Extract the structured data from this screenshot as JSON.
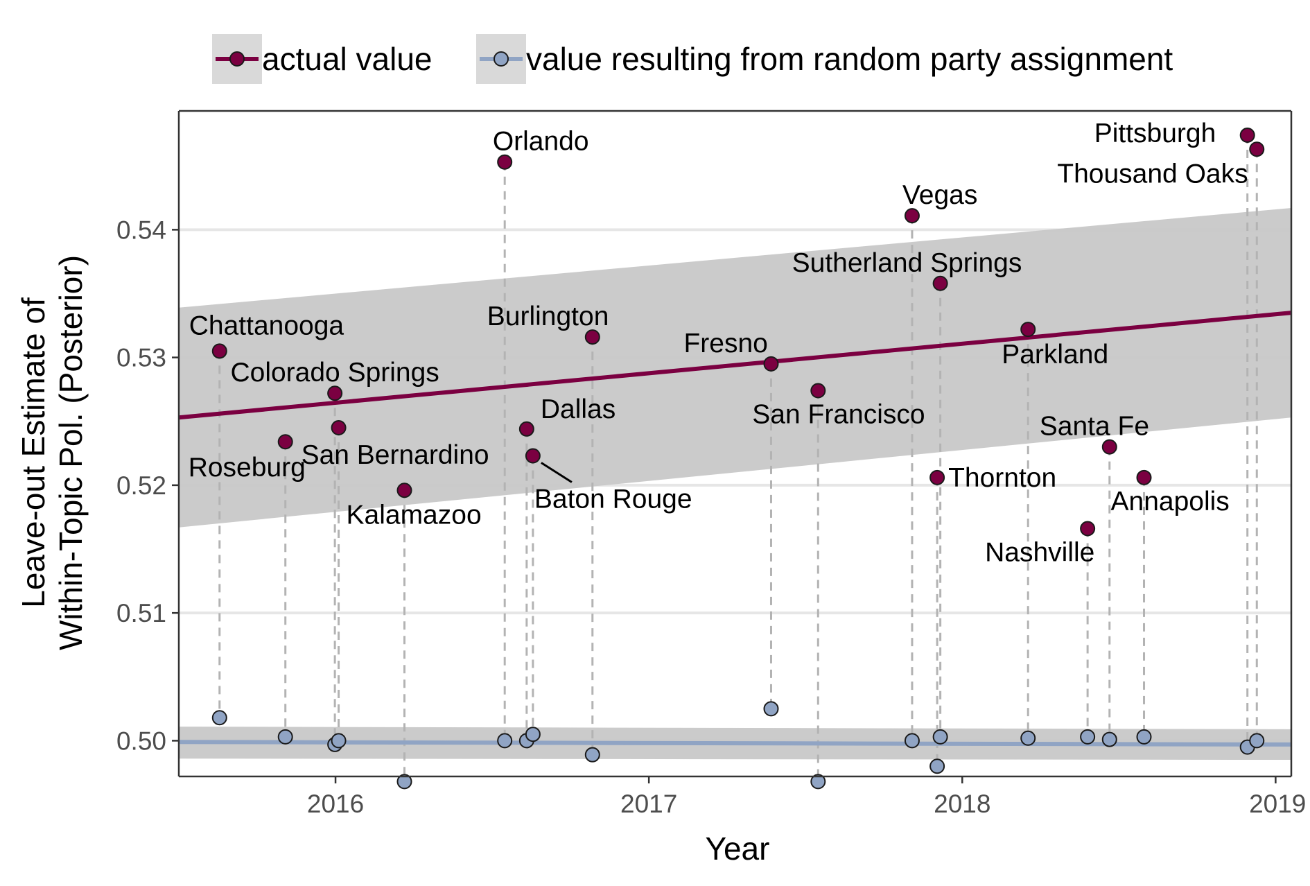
{
  "chart_data": {
    "type": "scatter",
    "xlabel": "Year",
    "ylabel_line1": "Leave-out Estimate of",
    "ylabel_line2": "Within-Topic Pol. (Posterior)",
    "xlim": [
      2015.5,
      2019.05
    ],
    "ylim": [
      0.4972,
      0.5493
    ],
    "x_ticks": [
      {
        "value": 2016,
        "label": "2016"
      },
      {
        "value": 2017,
        "label": "2017"
      },
      {
        "value": 2018,
        "label": "2018"
      },
      {
        "value": 2019,
        "label": "2019"
      }
    ],
    "y_ticks": [
      {
        "value": 0.5,
        "label": "0.50"
      },
      {
        "value": 0.51,
        "label": "0.51"
      },
      {
        "value": 0.52,
        "label": "0.52"
      },
      {
        "value": 0.53,
        "label": "0.53"
      },
      {
        "value": 0.54,
        "label": "0.54"
      }
    ],
    "grid": true,
    "legend_position": "top",
    "legend": [
      {
        "key": "actual",
        "label": "actual value",
        "color": "#7b0041"
      },
      {
        "key": "random",
        "label": "value resulting from random party assignment",
        "color": "#90a4c4"
      }
    ],
    "colors": {
      "actual": "#7b0041",
      "random": "#90a4c4",
      "ribbon": "#c8c8c8",
      "grid": "#e6e6e6",
      "dashed": "#b3b3b3"
    },
    "trend": {
      "actual": {
        "x": [
          2015.5,
          2019.05
        ],
        "y": [
          0.5253,
          0.5335
        ],
        "ci_low": [
          0.5167,
          0.5253
        ],
        "ci_high": [
          0.5339,
          0.5417
        ]
      },
      "random": {
        "x": [
          2015.5,
          2019.05
        ],
        "y": [
          0.4999,
          0.4997
        ],
        "ci_low": [
          0.4986,
          0.4985
        ],
        "ci_high": [
          0.5011,
          0.5009
        ]
      }
    },
    "events": [
      {
        "name": "Chattanooga",
        "x": 2015.63,
        "actual": 0.5305,
        "random": 0.5018
      },
      {
        "name": "Roseburg",
        "x": 2015.84,
        "actual": 0.5234,
        "random": 0.5003
      },
      {
        "name": "Colorado Springs",
        "x": 2015.998,
        "actual": 0.5272,
        "random": 0.4997
      },
      {
        "name": "San Bernardino",
        "x": 2016.01,
        "actual": 0.5245,
        "random": 0.5
      },
      {
        "name": "Kalamazoo",
        "x": 2016.22,
        "actual": 0.5196,
        "random": 0.4968
      },
      {
        "name": "Orlando",
        "x": 2016.54,
        "actual": 0.5453,
        "random": 0.5
      },
      {
        "name": "Dallas",
        "x": 2016.61,
        "actual": 0.5244,
        "random": 0.5
      },
      {
        "name": "Baton Rouge",
        "x": 2016.63,
        "actual": 0.5223,
        "random": 0.5005
      },
      {
        "name": "Burlington",
        "x": 2016.82,
        "actual": 0.5316,
        "random": 0.4989
      },
      {
        "name": "Fresno",
        "x": 2017.39,
        "actual": 0.5295,
        "random": 0.5025
      },
      {
        "name": "San Francisco",
        "x": 2017.54,
        "actual": 0.5274,
        "random": 0.4968
      },
      {
        "name": "Vegas",
        "x": 2017.84,
        "actual": 0.5411,
        "random": 0.5
      },
      {
        "name": "Sutherland Springs",
        "x": 2017.93,
        "actual": 0.5358,
        "random": 0.5003
      },
      {
        "name": "Thornton",
        "x": 2017.92,
        "actual": 0.5206,
        "random": 0.498
      },
      {
        "name": "Parkland",
        "x": 2018.21,
        "actual": 0.5322,
        "random": 0.5002
      },
      {
        "name": "Nashville",
        "x": 2018.4,
        "actual": 0.5166,
        "random": 0.5003
      },
      {
        "name": "Santa Fe",
        "x": 2018.47,
        "actual": 0.523,
        "random": 0.5001
      },
      {
        "name": "Annapolis",
        "x": 2018.58,
        "actual": 0.5206,
        "random": 0.5003
      },
      {
        "name": "Pittsburgh",
        "x": 2018.91,
        "actual": 0.5474,
        "random": 0.4995
      },
      {
        "name": "Thousand Oaks",
        "x": 2018.94,
        "actual": 0.5463,
        "random": 0.5
      }
    ]
  }
}
